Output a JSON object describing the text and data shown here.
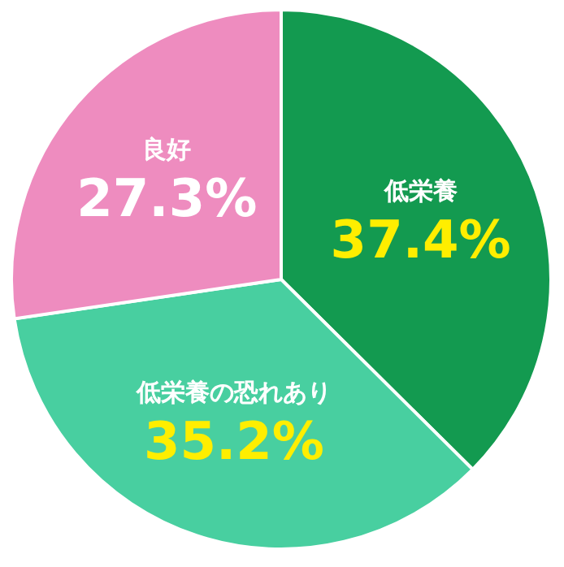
{
  "chart_data": {
    "type": "pie",
    "categories": [
      "低栄養",
      "低栄養の恐れあり",
      "良好"
    ],
    "values": [
      37.4,
      35.2,
      27.3
    ],
    "colors": [
      "#139a50",
      "#48cfa0",
      "#ee8cbf"
    ],
    "value_labels": [
      "37.4%",
      "35.2%",
      "27.3%"
    ]
  }
}
